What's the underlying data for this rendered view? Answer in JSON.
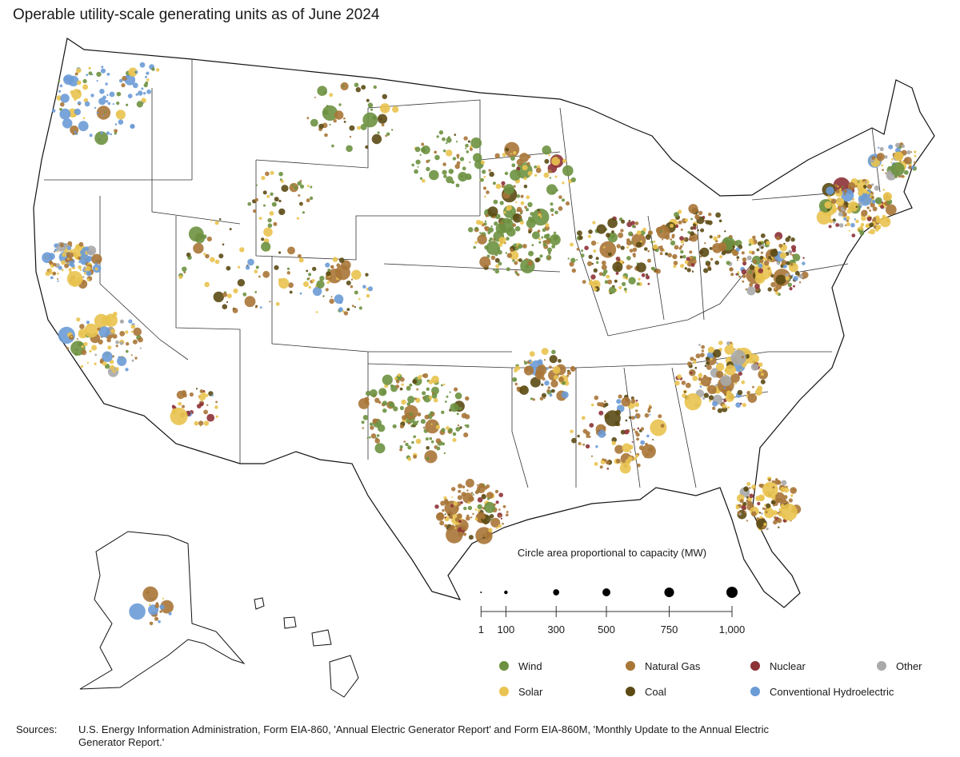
{
  "title": "Operable utility-scale generating units as of June 2024",
  "colors": {
    "wind": "#6d9140",
    "solar": "#e9c34f",
    "natural_gas": "#a87637",
    "coal": "#5b4a14",
    "nuclear": "#8d3237",
    "hydro": "#6b9bd6",
    "other": "#a9a9a9",
    "state_border": "#111111",
    "land": "#ffffff"
  },
  "size_legend": {
    "title": "Circle area proportional to capacity (MW)",
    "values": [
      1,
      100,
      300,
      500,
      750,
      1000
    ],
    "labels": [
      "1",
      "100",
      "300",
      "500",
      "750",
      "1,000"
    ]
  },
  "legend": [
    {
      "key": "wind",
      "label": "Wind",
      "color": "#6d9140"
    },
    {
      "key": "natural_gas",
      "label": "Natural Gas",
      "color": "#a87637"
    },
    {
      "key": "nuclear",
      "label": "Nuclear",
      "color": "#8d3237"
    },
    {
      "key": "other",
      "label": "Other",
      "color": "#a9a9a9"
    },
    {
      "key": "solar",
      "label": "Solar",
      "color": "#e9c34f"
    },
    {
      "key": "coal",
      "label": "Coal",
      "color": "#5b4a14"
    },
    {
      "key": "hydro",
      "label": "Conventional Hydroelectric",
      "color": "#6b9bd6"
    }
  ],
  "sources": {
    "label": "Sources:",
    "text": "U.S. Energy Information Administration, Form EIA-860, 'Annual Electric Generator Report' and Form EIA-860M, 'Monthly Update to the Annual Electric Generator Report.'"
  }
}
